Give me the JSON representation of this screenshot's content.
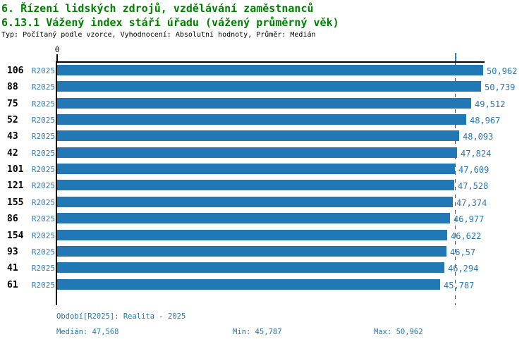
{
  "header": {
    "title_line1": "6. Řízení lidských zdrojů, vzdělávání zaměstnanců",
    "title_line2": "6.13.1 Vážený index stáří úřadu (vážený průměrný věk)",
    "meta": "Typ: Počítaný podle vzorce, Vyhodnocení: Absolutní hodnoty, Průměr: Medián"
  },
  "chart_data": {
    "type": "bar",
    "orientation": "horizontal",
    "title": "6.13.1 Vážený index stáří úřadu (vážený průměrný věk)",
    "categories": [
      "106",
      "88",
      "75",
      "52",
      "43",
      "42",
      "101",
      "121",
      "155",
      "86",
      "154",
      "93",
      "41",
      "61"
    ],
    "period_label": "R2025",
    "values": [
      50.962,
      50.739,
      49.512,
      48.967,
      48.093,
      47.824,
      47.609,
      47.528,
      47.374,
      46.977,
      46.622,
      46.57,
      46.294,
      45.787
    ],
    "value_labels": [
      "50,962",
      "50,739",
      "49,512",
      "48,967",
      "48,093",
      "47,824",
      "47,609",
      "47,528",
      "47,374",
      "46,977",
      "46,622",
      "46,57",
      "46,294",
      "45,787"
    ],
    "xlim": [
      0,
      50.962
    ],
    "zero_label": "0",
    "median": 47.568,
    "grid": false,
    "legend": false,
    "bar_color": "#2277b5"
  },
  "footer": {
    "period": "Období[R2025]: Realita - 2025",
    "median": "Medián: 47,568",
    "min": "Min: 45,787",
    "max": "Max: 50,962"
  },
  "colors": {
    "title_green": "#008000",
    "bar_blue": "#2277b5",
    "label_blue": "#2e7cb8",
    "footer_blue": "#2878a8",
    "median_dash": "#4a5a6f"
  }
}
